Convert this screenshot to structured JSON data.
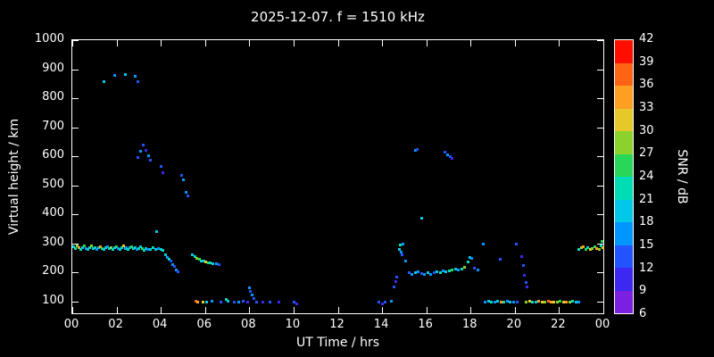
{
  "title": "2025-12-07. f = 1510 kHz",
  "chart_data": {
    "type": "scatter",
    "title": "2025-12-07. f = 1510 kHz",
    "xlabel": "UT Time / hrs",
    "ylabel": "Virtual height / km",
    "xlim": [
      0,
      24
    ],
    "ylim": [
      60,
      1000
    ],
    "background": "#000000",
    "axis_color": "#ffffff",
    "grid": false,
    "x_ticks": [
      {
        "value": 0,
        "label": "00"
      },
      {
        "value": 2,
        "label": "02"
      },
      {
        "value": 4,
        "label": "04"
      },
      {
        "value": 6,
        "label": "06"
      },
      {
        "value": 8,
        "label": "08"
      },
      {
        "value": 10,
        "label": "10"
      },
      {
        "value": 12,
        "label": "12"
      },
      {
        "value": 14,
        "label": "14"
      },
      {
        "value": 16,
        "label": "16"
      },
      {
        "value": 18,
        "label": "18"
      },
      {
        "value": 20,
        "label": "20"
      },
      {
        "value": 22,
        "label": "22"
      },
      {
        "value": 24,
        "label": "00"
      }
    ],
    "y_ticks": [
      {
        "value": 1000,
        "label": "1000"
      },
      {
        "value": 900,
        "label": "900"
      },
      {
        "value": 800,
        "label": "800"
      },
      {
        "value": 700,
        "label": "700"
      },
      {
        "value": 600,
        "label": "600"
      },
      {
        "value": 500,
        "label": "500"
      },
      {
        "value": 400,
        "label": "400"
      },
      {
        "value": 300,
        "label": "300"
      },
      {
        "value": 200,
        "label": "200"
      },
      {
        "value": 100,
        "label": "100"
      }
    ],
    "colorbar": {
      "label": "SNR / dB",
      "min": 6,
      "max": 42,
      "step": 3,
      "tick_labels_top_to_bottom": [
        "42",
        "39",
        "36",
        "33",
        "30",
        "27",
        "24",
        "21",
        "18",
        "15",
        "12",
        "9",
        "6"
      ],
      "segment_colors_bottom_to_top": [
        "#7b1fe0",
        "#3c28f0",
        "#2353ff",
        "#0096ff",
        "#00c8e6",
        "#00dcb4",
        "#28d75a",
        "#8cd22d",
        "#e6c828",
        "#ffa023",
        "#ff6414",
        "#ff0f00"
      ]
    },
    "points_format": [
      "ut_hours",
      "virtual_height_km",
      "snr_db"
    ],
    "points": [
      [
        0.05,
        290,
        18
      ],
      [
        0.12,
        283,
        21
      ],
      [
        0.2,
        292,
        27
      ],
      [
        0.28,
        286,
        33
      ],
      [
        0.36,
        280,
        21
      ],
      [
        0.44,
        288,
        18
      ],
      [
        0.52,
        294,
        24
      ],
      [
        0.6,
        285,
        15
      ],
      [
        0.68,
        280,
        18
      ],
      [
        0.76,
        287,
        21
      ],
      [
        0.84,
        292,
        27
      ],
      [
        0.92,
        284,
        18
      ],
      [
        1.0,
        288,
        21
      ],
      [
        1.08,
        281,
        15
      ],
      [
        1.16,
        286,
        18
      ],
      [
        1.24,
        291,
        33
      ],
      [
        1.32,
        285,
        24
      ],
      [
        1.4,
        280,
        18
      ],
      [
        1.48,
        286,
        21
      ],
      [
        1.56,
        290,
        15
      ],
      [
        1.64,
        284,
        18
      ],
      [
        1.72,
        288,
        27
      ],
      [
        1.8,
        282,
        21
      ],
      [
        1.88,
        286,
        18
      ],
      [
        1.96,
        291,
        24
      ],
      [
        2.04,
        285,
        15
      ],
      [
        2.12,
        280,
        18
      ],
      [
        2.2,
        287,
        21
      ],
      [
        2.28,
        292,
        30
      ],
      [
        2.36,
        284,
        18
      ],
      [
        2.44,
        288,
        15
      ],
      [
        2.52,
        282,
        21
      ],
      [
        2.6,
        286,
        18
      ],
      [
        2.68,
        290,
        24
      ],
      [
        2.76,
        283,
        21
      ],
      [
        2.84,
        287,
        18
      ],
      [
        2.92,
        281,
        15
      ],
      [
        3.0,
        285,
        21
      ],
      [
        3.08,
        289,
        18
      ],
      [
        3.16,
        283,
        24
      ],
      [
        3.24,
        278,
        21
      ],
      [
        3.32,
        284,
        18
      ],
      [
        3.4,
        280,
        15
      ],
      [
        3.52,
        282,
        18
      ],
      [
        3.64,
        286,
        21
      ],
      [
        3.76,
        280,
        18
      ],
      [
        3.88,
        284,
        15
      ],
      [
        4.0,
        281,
        18
      ],
      [
        4.08,
        278,
        21
      ],
      [
        4.18,
        262,
        18
      ],
      [
        4.26,
        255,
        15
      ],
      [
        4.34,
        248,
        21
      ],
      [
        4.42,
        240,
        12
      ],
      [
        4.5,
        230,
        15
      ],
      [
        4.58,
        222,
        12
      ],
      [
        4.66,
        212,
        15
      ],
      [
        4.74,
        205,
        12
      ],
      [
        3.8,
        342,
        18
      ],
      [
        1.42,
        858,
        18
      ],
      [
        1.9,
        880,
        15
      ],
      [
        2.36,
        882,
        18
      ],
      [
        2.82,
        876,
        15
      ],
      [
        2.94,
        858,
        12
      ],
      [
        2.96,
        598,
        12
      ],
      [
        3.06,
        618,
        15
      ],
      [
        3.18,
        640,
        12
      ],
      [
        3.3,
        622,
        9
      ],
      [
        3.42,
        605,
        15
      ],
      [
        3.5,
        588,
        12
      ],
      [
        3.98,
        566,
        12
      ],
      [
        4.06,
        546,
        9
      ],
      [
        4.94,
        536,
        12
      ],
      [
        5.02,
        520,
        15
      ],
      [
        5.14,
        478,
        15
      ],
      [
        5.22,
        466,
        12
      ],
      [
        5.42,
        262,
        18
      ],
      [
        5.52,
        256,
        21
      ],
      [
        5.62,
        250,
        27
      ],
      [
        5.72,
        246,
        24
      ],
      [
        5.82,
        242,
        21
      ],
      [
        5.92,
        240,
        18
      ],
      [
        6.02,
        238,
        30
      ],
      [
        6.12,
        236,
        24
      ],
      [
        6.22,
        234,
        21
      ],
      [
        6.32,
        232,
        18
      ],
      [
        6.5,
        231,
        15
      ],
      [
        6.62,
        229,
        12
      ],
      [
        5.56,
        104,
        36
      ],
      [
        5.66,
        100,
        33
      ],
      [
        5.88,
        101,
        30
      ],
      [
        6.06,
        99,
        18
      ],
      [
        6.3,
        104,
        15
      ],
      [
        6.68,
        100,
        12
      ],
      [
        6.92,
        109,
        21
      ],
      [
        7.02,
        104,
        18
      ],
      [
        7.3,
        99,
        12
      ],
      [
        7.52,
        100,
        15
      ],
      [
        7.72,
        104,
        12
      ],
      [
        7.92,
        99,
        9
      ],
      [
        7.98,
        148,
        15
      ],
      [
        8.04,
        138,
        12
      ],
      [
        8.12,
        124,
        15
      ],
      [
        8.18,
        112,
        12
      ],
      [
        8.32,
        100,
        12
      ],
      [
        8.6,
        99,
        9
      ],
      [
        8.92,
        101,
        12
      ],
      [
        9.32,
        99,
        9
      ],
      [
        10.02,
        100,
        12
      ],
      [
        10.14,
        95,
        9
      ],
      [
        13.84,
        99,
        12
      ],
      [
        13.98,
        95,
        9
      ],
      [
        14.1,
        100,
        12
      ],
      [
        14.42,
        104,
        15
      ],
      [
        14.52,
        153,
        12
      ],
      [
        14.62,
        170,
        9
      ],
      [
        14.66,
        186,
        12
      ],
      [
        14.76,
        282,
        18
      ],
      [
        14.8,
        296,
        21
      ],
      [
        14.84,
        272,
        15
      ],
      [
        14.88,
        262,
        12
      ],
      [
        14.94,
        300,
        15
      ],
      [
        15.04,
        242,
        15
      ],
      [
        15.48,
        622,
        15
      ],
      [
        15.56,
        626,
        12
      ],
      [
        16.84,
        616,
        12
      ],
      [
        16.94,
        606,
        15
      ],
      [
        17.08,
        600,
        12
      ],
      [
        17.16,
        594,
        9
      ],
      [
        15.76,
        390,
        18
      ],
      [
        15.2,
        200,
        12
      ],
      [
        15.34,
        196,
        15
      ],
      [
        15.48,
        200,
        18
      ],
      [
        15.62,
        204,
        15
      ],
      [
        15.76,
        199,
        12
      ],
      [
        15.9,
        196,
        15
      ],
      [
        16.04,
        200,
        18
      ],
      [
        16.18,
        196,
        15
      ],
      [
        16.32,
        200,
        12
      ],
      [
        16.46,
        204,
        18
      ],
      [
        16.6,
        200,
        21
      ],
      [
        16.74,
        208,
        15
      ],
      [
        16.88,
        204,
        18
      ],
      [
        17.02,
        208,
        21
      ],
      [
        17.16,
        212,
        24
      ],
      [
        17.3,
        214,
        18
      ],
      [
        17.44,
        210,
        15
      ],
      [
        17.58,
        214,
        21
      ],
      [
        17.72,
        219,
        27
      ],
      [
        17.86,
        238,
        21
      ],
      [
        17.94,
        254,
        18
      ],
      [
        18.04,
        250,
        15
      ],
      [
        18.16,
        216,
        12
      ],
      [
        18.3,
        210,
        15
      ],
      [
        18.54,
        300,
        15
      ],
      [
        19.34,
        246,
        12
      ],
      [
        20.06,
        300,
        12
      ],
      [
        20.3,
        256,
        9
      ],
      [
        20.36,
        226,
        12
      ],
      [
        20.42,
        192,
        9
      ],
      [
        20.48,
        166,
        12
      ],
      [
        20.54,
        152,
        9
      ],
      [
        18.64,
        100,
        15
      ],
      [
        18.78,
        104,
        18
      ],
      [
        18.92,
        99,
        21
      ],
      [
        19.06,
        100,
        15
      ],
      [
        19.2,
        104,
        18
      ],
      [
        19.36,
        100,
        33
      ],
      [
        19.5,
        99,
        21
      ],
      [
        19.64,
        104,
        15
      ],
      [
        19.78,
        100,
        18
      ],
      [
        19.92,
        100,
        15
      ],
      [
        20.08,
        99,
        12
      ],
      [
        20.5,
        100,
        27
      ],
      [
        20.64,
        104,
        30
      ],
      [
        20.78,
        100,
        21
      ],
      [
        20.92,
        99,
        18
      ],
      [
        21.06,
        104,
        33
      ],
      [
        21.2,
        100,
        30
      ],
      [
        21.34,
        99,
        27
      ],
      [
        21.48,
        104,
        36
      ],
      [
        21.62,
        100,
        33
      ],
      [
        21.76,
        99,
        30
      ],
      [
        21.9,
        100,
        27
      ],
      [
        22.04,
        104,
        24
      ],
      [
        22.18,
        100,
        30
      ],
      [
        22.32,
        99,
        33
      ],
      [
        22.46,
        100,
        27
      ],
      [
        22.6,
        104,
        21
      ],
      [
        22.74,
        100,
        18
      ],
      [
        22.88,
        99,
        15
      ],
      [
        22.86,
        282,
        21
      ],
      [
        22.98,
        286,
        27
      ],
      [
        23.08,
        291,
        33
      ],
      [
        23.18,
        281,
        24
      ],
      [
        23.28,
        286,
        21
      ],
      [
        23.38,
        280,
        30
      ],
      [
        23.48,
        285,
        27
      ],
      [
        23.58,
        290,
        24
      ],
      [
        23.68,
        284,
        33
      ],
      [
        23.78,
        280,
        27
      ],
      [
        23.86,
        294,
        21
      ],
      [
        23.92,
        310,
        24
      ],
      [
        23.97,
        286,
        30
      ]
    ]
  }
}
